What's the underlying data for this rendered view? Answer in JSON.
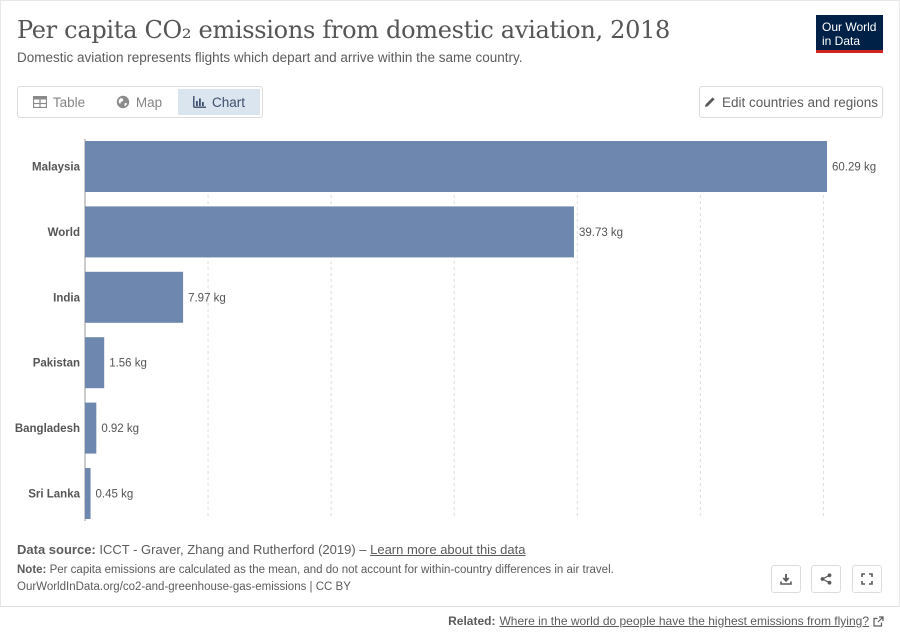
{
  "header": {
    "title": "Per capita CO₂ emissions from domestic aviation, 2018",
    "subtitle": "Domestic aviation represents flights which depart and arrive within the same country.",
    "logo_line1": "Our World",
    "logo_line2": "in Data"
  },
  "tabs": [
    {
      "label": "Table",
      "icon": "table-icon"
    },
    {
      "label": "Map",
      "icon": "globe-icon"
    },
    {
      "label": "Chart",
      "icon": "chart-icon",
      "active": true
    }
  ],
  "edit_button_label": "Edit countries and regions",
  "chart_data": {
    "type": "bar",
    "orientation": "horizontal",
    "categories": [
      "Malaysia",
      "World",
      "India",
      "Pakistan",
      "Bangladesh",
      "Sri Lanka"
    ],
    "values": [
      60.29,
      39.73,
      7.97,
      1.56,
      0.92,
      0.45
    ],
    "value_labels": [
      "60.29 kg",
      "39.73 kg",
      "7.97 kg",
      "1.56 kg",
      "0.92 kg",
      "0.45 kg"
    ],
    "unit": "kg",
    "xlim": [
      0,
      60.29
    ],
    "grid_values": [
      10,
      20,
      30,
      40,
      50,
      60
    ],
    "grid": true,
    "bar_color": "#6d87ae",
    "title": "",
    "xlabel": "",
    "ylabel": ""
  },
  "footer": {
    "source_label": "Data source:",
    "source_text": "ICCT - Graver, Zhang and Rutherford (2019) –",
    "source_link": "Learn more about this data",
    "note_label": "Note:",
    "note_text": "Per capita emissions are calculated as the mean, and do not account for within-country differences in air travel.",
    "url_text": "OurWorldInData.org/co2-and-greenhouse-gas-emissions | CC BY"
  },
  "actions": [
    {
      "name": "download-button",
      "icon": "download-icon"
    },
    {
      "name": "share-button",
      "icon": "share-icon"
    },
    {
      "name": "fullscreen-button",
      "icon": "expand-icon"
    }
  ],
  "related": {
    "label": "Related:",
    "link_text": "Where in the world do people have the highest emissions from flying?"
  }
}
